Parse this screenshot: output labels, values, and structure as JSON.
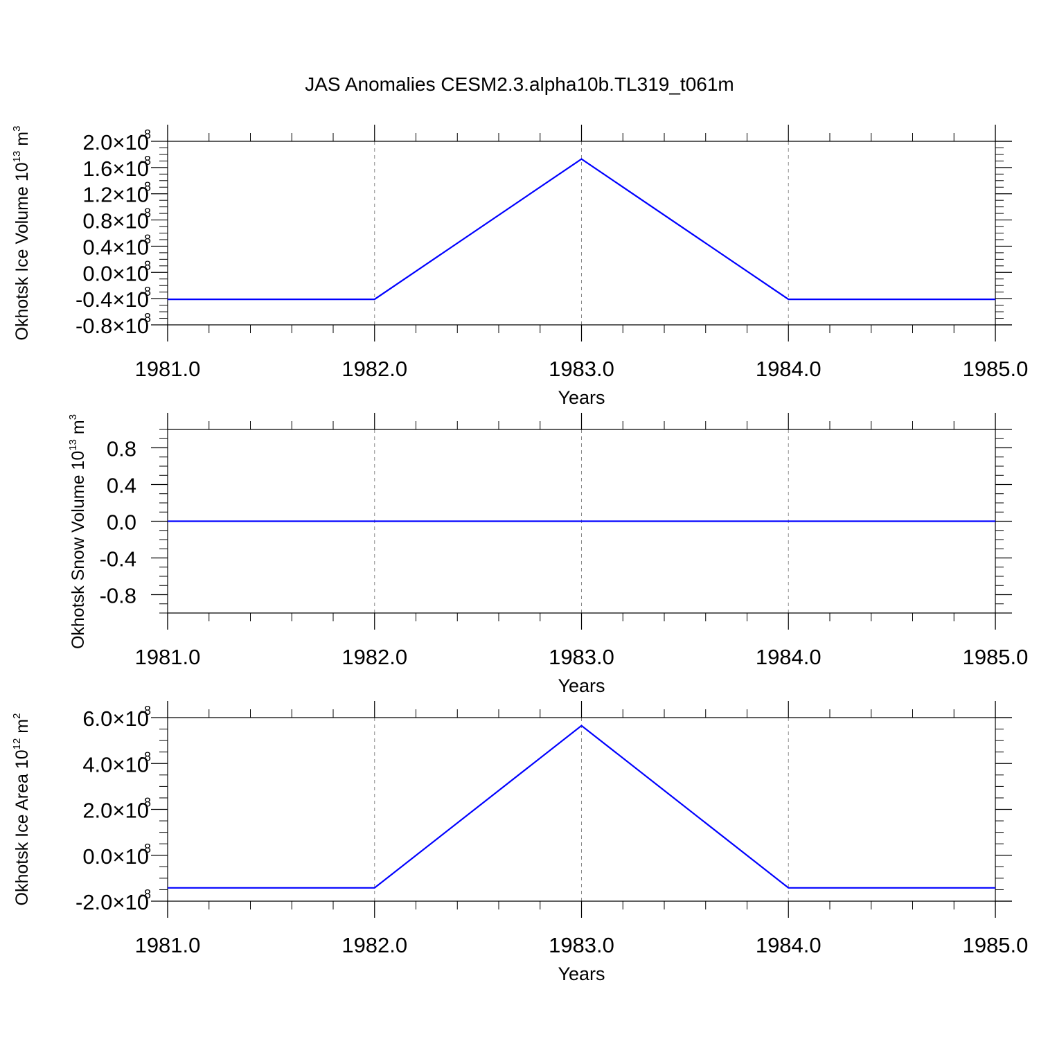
{
  "title": "JAS Anomalies CESM2.3.alpha10b.TL319_t061m",
  "colors": {
    "series": "#0000ff",
    "axes": "#000000",
    "grid": "#888888"
  },
  "chart_data": [
    {
      "type": "line",
      "ylabel": {
        "text": "Okhotsk Ice Volume 10",
        "exp": "13",
        "unit": " m",
        "unit_exp": "3"
      },
      "xlabel": "Years",
      "xlim": [
        1981.0,
        1985.0
      ],
      "x_ticks": [
        "1981.0",
        "1982.0",
        "1983.0",
        "1984.0",
        "1985.0"
      ],
      "ylim": [
        -0.8,
        2.0
      ],
      "y_ticks": [
        {
          "value": 2.0,
          "mantissa": "2.0×10",
          "exp": "-8"
        },
        {
          "value": 1.6,
          "mantissa": "1.6×10",
          "exp": "-8"
        },
        {
          "value": 1.2,
          "mantissa": "1.2×10",
          "exp": "-8"
        },
        {
          "value": 0.8,
          "mantissa": "0.8×10",
          "exp": "-8"
        },
        {
          "value": 0.4,
          "mantissa": "0.4×10",
          "exp": "-8"
        },
        {
          "value": 0.0,
          "mantissa": "0.0×10",
          "exp": "-8"
        },
        {
          "value": -0.4,
          "mantissa": "-0.4×10",
          "exp": "-8"
        },
        {
          "value": -0.8,
          "mantissa": "-0.8×10",
          "exp": "-8"
        }
      ],
      "grid": "vertical dashed",
      "x": [
        1981,
        1982,
        1983,
        1984,
        1985
      ],
      "y": [
        -0.41,
        -0.41,
        1.73,
        -0.41,
        -0.41
      ]
    },
    {
      "type": "line",
      "ylabel": {
        "text": "Okhotsk Snow Volume 10",
        "exp": "13",
        "unit": " m",
        "unit_exp": "3"
      },
      "xlabel": "Years",
      "xlim": [
        1981.0,
        1985.0
      ],
      "x_ticks": [
        "1981.0",
        "1982.0",
        "1983.0",
        "1984.0",
        "1985.0"
      ],
      "ylim": [
        -1.0,
        1.0
      ],
      "y_ticks": [
        {
          "value": 0.8,
          "mantissa": "0.8",
          "exp": ""
        },
        {
          "value": 0.4,
          "mantissa": "0.4",
          "exp": ""
        },
        {
          "value": 0.0,
          "mantissa": "0.0",
          "exp": ""
        },
        {
          "value": -0.4,
          "mantissa": "-0.4",
          "exp": ""
        },
        {
          "value": -0.8,
          "mantissa": "-0.8",
          "exp": ""
        }
      ],
      "grid": "vertical dashed",
      "x": [
        1981,
        1982,
        1983,
        1984,
        1985
      ],
      "y": [
        0,
        0,
        0,
        0,
        0
      ]
    },
    {
      "type": "line",
      "ylabel": {
        "text": "Okhotsk Ice Area 10",
        "exp": "12",
        "unit": " m",
        "unit_exp": "2"
      },
      "xlabel": "Years",
      "xlim": [
        1981.0,
        1985.0
      ],
      "x_ticks": [
        "1981.0",
        "1982.0",
        "1983.0",
        "1984.0",
        "1985.0"
      ],
      "ylim": [
        -2.0,
        6.0
      ],
      "y_ticks": [
        {
          "value": 6.0,
          "mantissa": "6.0×10",
          "exp": "-8"
        },
        {
          "value": 4.0,
          "mantissa": "4.0×10",
          "exp": "-8"
        },
        {
          "value": 2.0,
          "mantissa": "2.0×10",
          "exp": "-8"
        },
        {
          "value": 0.0,
          "mantissa": "0.0×10",
          "exp": "-8"
        },
        {
          "value": -2.0,
          "mantissa": "-2.0×10",
          "exp": "-8"
        }
      ],
      "grid": "vertical dashed",
      "x": [
        1981,
        1982,
        1983,
        1984,
        1985
      ],
      "y": [
        -1.42,
        -1.42,
        5.65,
        -1.42,
        -1.42
      ]
    }
  ]
}
